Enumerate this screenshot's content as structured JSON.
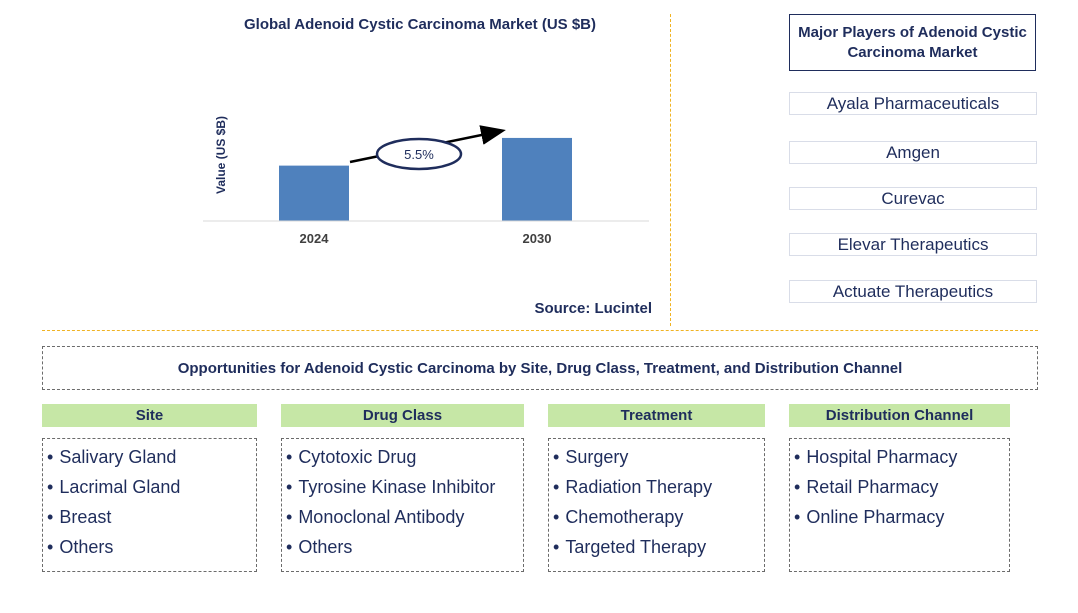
{
  "chart_data": {
    "type": "bar",
    "title": "Global Adenoid Cystic Carcinoma Market (US $B)",
    "xlabel": "",
    "ylabel": "Value (US $B)",
    "categories": [
      "2024",
      "2030"
    ],
    "values": [
      0.3,
      0.45
    ],
    "ylim": [
      0,
      0.65
    ],
    "annotation": "5.5%",
    "color": "#4f81bd",
    "grid": false
  },
  "source": "Source: Lucintel",
  "players": {
    "header": "Major Players of Adenoid Cystic Carcinoma Market",
    "items": [
      "Ayala Pharmaceuticals",
      "Amgen",
      "Curevac",
      "Elevar Therapeutics",
      "Actuate Therapeutics"
    ]
  },
  "opportunities": {
    "title": "Opportunities for Adenoid Cystic Carcinoma by Site, Drug Class, Treatment, and Distribution Channel",
    "categories": [
      {
        "name": "Site",
        "items": [
          "Salivary Gland",
          "Lacrimal Gland",
          "Breast",
          "Others"
        ]
      },
      {
        "name": "Drug Class",
        "items": [
          "Cytotoxic Drug",
          "Tyrosine Kinase Inhibitor",
          "Monoclonal Antibody",
          "Others"
        ]
      },
      {
        "name": "Treatment",
        "items": [
          "Surgery",
          "Radiation Therapy",
          "Chemotherapy",
          "Targeted Therapy"
        ]
      },
      {
        "name": "Distribution Channel",
        "items": [
          "Hospital Pharmacy",
          "Retail Pharmacy",
          "Online Pharmacy"
        ]
      }
    ]
  },
  "colors": {
    "accent": "#1f2d5c",
    "bar": "#4f81bd",
    "category_header": "#c6e7a6",
    "divider": "#f0b323"
  }
}
